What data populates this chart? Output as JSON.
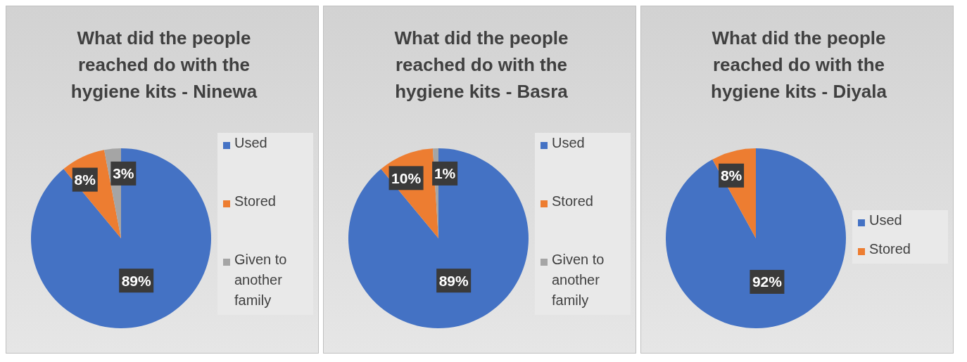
{
  "chart_data": [
    {
      "type": "pie",
      "title": "What did the people reached do with the hygiene kits - Ninewa",
      "categories": [
        "Used",
        "Stored",
        "Given to another family"
      ],
      "values": [
        89,
        8,
        3
      ],
      "value_labels": [
        "89%",
        "8%",
        "3%"
      ],
      "colors": [
        "#4472c4",
        "#ed7d31",
        "#a5a5a5"
      ],
      "legend": "right"
    },
    {
      "type": "pie",
      "title": "What did the people reached do with the hygiene kits - Basra",
      "categories": [
        "Used",
        "Stored",
        "Given to another family"
      ],
      "values": [
        89,
        10,
        1
      ],
      "value_labels": [
        "89%",
        "10%",
        "1%"
      ],
      "colors": [
        "#4472c4",
        "#ed7d31",
        "#a5a5a5"
      ],
      "legend": "right"
    },
    {
      "type": "pie",
      "title": "What did the people reached do with the hygiene kits - Diyala",
      "categories": [
        "Used",
        "Stored"
      ],
      "values": [
        92,
        8
      ],
      "value_labels": [
        "92%",
        "8%"
      ],
      "colors": [
        "#4472c4",
        "#ed7d31"
      ],
      "legend": "right"
    }
  ]
}
